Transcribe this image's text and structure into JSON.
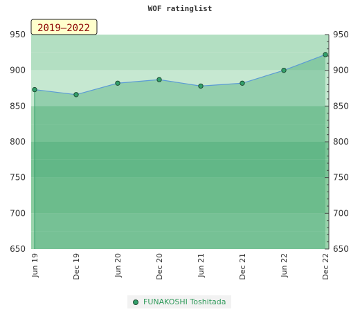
{
  "chart_data": {
    "type": "area",
    "title": "WOF ratinglist",
    "period_badge": "2019–2022",
    "x_categories": [
      "Jun 19",
      "Dec 19",
      "Jun 20",
      "Dec 20",
      "Jun 21",
      "Dec 21",
      "Jun 22",
      "Dec 22"
    ],
    "ylim": [
      650,
      950
    ],
    "y_ticks": [
      650,
      700,
      750,
      800,
      850,
      900,
      950
    ],
    "grid": false,
    "legend_position": "bottom",
    "series": [
      {
        "name": "FUNAKOSHI Toshitada",
        "color": "#33a06b",
        "line_color": "#5b9bd5",
        "values": [
          873,
          866,
          882,
          887,
          878,
          882,
          900,
          922
        ]
      }
    ]
  }
}
